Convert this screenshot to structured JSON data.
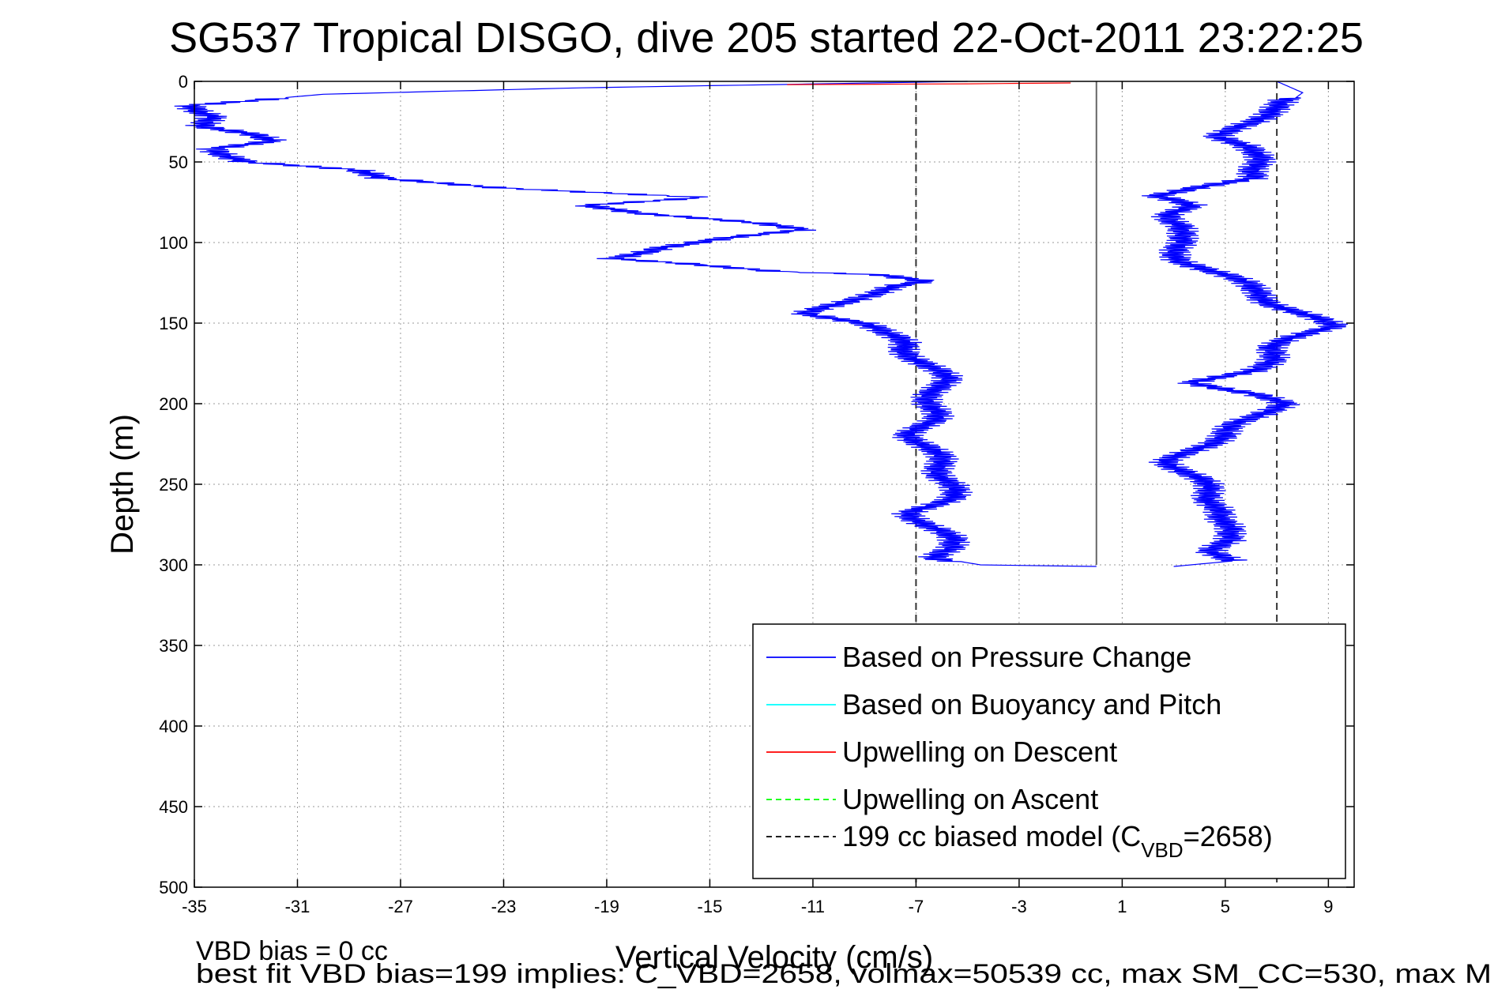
{
  "chart_data": {
    "type": "line",
    "title": "SG537 Tropical DISGO, dive 205 started 22-Oct-2011 23:22:25",
    "xlabel": "Vertical Velocity (cm/s)",
    "ylabel": "Depth (m)",
    "xlim": [
      -35,
      10
    ],
    "ylim": [
      0,
      500
    ],
    "y_reversed": true,
    "grid": true,
    "x_ticks": [
      -35,
      -31,
      -27,
      -23,
      -19,
      -15,
      -11,
      -7,
      -3,
      1,
      5,
      9
    ],
    "y_ticks": [
      0,
      50,
      100,
      150,
      200,
      250,
      300,
      350,
      400,
      450,
      500
    ],
    "legend_position": "bottom-right",
    "legend": [
      {
        "label": "Based on Pressure Change",
        "color": "#0000ff",
        "style": "solid"
      },
      {
        "label": "Based on Buoyancy and Pitch",
        "color": "#00ffff",
        "style": "solid"
      },
      {
        "label": "Upwelling on Descent",
        "color": "#ff0000",
        "style": "solid"
      },
      {
        "label": "Upwelling on Ascent",
        "color": "#00ff00",
        "style": "dashed"
      },
      {
        "label_prefix": "199 cc biased model (C",
        "label_sub": "VBD",
        "label_suffix": "=2658)",
        "color": "#000000",
        "style": "dashed"
      }
    ],
    "series": [
      {
        "name": "Based on Pressure Change",
        "color": "#0000ff",
        "segment": "descent",
        "points": [
          [
            -5,
            0
          ],
          [
            -20,
            4
          ],
          [
            -30,
            8
          ],
          [
            -35,
            15
          ],
          [
            -34,
            22
          ],
          [
            -35,
            28
          ],
          [
            -33,
            33
          ],
          [
            -32,
            37
          ],
          [
            -34,
            42
          ],
          [
            -33,
            50
          ],
          [
            -29,
            55
          ],
          [
            -28,
            60
          ],
          [
            -23,
            66
          ],
          [
            -15,
            72
          ],
          [
            -20,
            77
          ],
          [
            -18,
            82
          ],
          [
            -13,
            88
          ],
          [
            -11,
            92
          ],
          [
            -14,
            97
          ],
          [
            -17,
            103
          ],
          [
            -19,
            110
          ],
          [
            -16,
            113
          ],
          [
            -12,
            118
          ],
          [
            -8,
            120
          ],
          [
            -6.5,
            124
          ],
          [
            -8,
            127
          ],
          [
            -9,
            132
          ],
          [
            -10,
            138
          ],
          [
            -11,
            144
          ],
          [
            -9,
            150
          ],
          [
            -8.5,
            156
          ],
          [
            -7.5,
            162
          ],
          [
            -7,
            170
          ],
          [
            -6.5,
            178
          ],
          [
            -6,
            185
          ],
          [
            -6,
            192
          ],
          [
            -6.5,
            200
          ],
          [
            -6.5,
            210
          ],
          [
            -7,
            220
          ],
          [
            -6.5,
            230
          ],
          [
            -6,
            240
          ],
          [
            -5.5,
            250
          ],
          [
            -6,
            260
          ],
          [
            -7,
            268
          ],
          [
            -6.5,
            276
          ],
          [
            -6,
            282
          ],
          [
            -5.5,
            290
          ],
          [
            -6,
            296
          ],
          [
            -4.5,
            300
          ],
          [
            0,
            301
          ]
        ]
      },
      {
        "name": "Based on Pressure Change",
        "color": "#0000ff",
        "segment": "ascent",
        "points": [
          [
            3,
            301
          ],
          [
            5,
            298
          ],
          [
            4.5,
            292
          ],
          [
            5.5,
            285
          ],
          [
            5,
            278
          ],
          [
            4.5,
            272
          ],
          [
            5,
            265
          ],
          [
            4.5,
            258
          ],
          [
            4,
            250
          ],
          [
            3.5,
            243
          ],
          [
            3,
            236
          ],
          [
            3.5,
            230
          ],
          [
            4.5,
            222
          ],
          [
            5.5,
            214
          ],
          [
            6.5,
            207
          ],
          [
            7,
            200
          ],
          [
            6,
            194
          ],
          [
            4,
            187
          ],
          [
            6,
            180
          ],
          [
            6.5,
            173
          ],
          [
            7,
            165
          ],
          [
            8,
            158
          ],
          [
            9,
            152
          ],
          [
            8,
            145
          ],
          [
            7,
            138
          ],
          [
            6.5,
            132
          ],
          [
            5.5,
            125
          ],
          [
            4.5,
            118
          ],
          [
            3.5,
            111
          ],
          [
            3,
            104
          ],
          [
            3,
            97
          ],
          [
            3.5,
            90
          ],
          [
            3,
            83
          ],
          [
            3.5,
            77
          ],
          [
            2,
            71
          ],
          [
            4,
            66
          ],
          [
            6.5,
            60
          ],
          [
            6,
            54
          ],
          [
            6,
            47
          ],
          [
            6,
            40
          ],
          [
            5,
            34
          ],
          [
            5.5,
            27
          ],
          [
            6.5,
            20
          ],
          [
            7.5,
            13
          ],
          [
            8,
            7
          ],
          [
            7,
            0
          ]
        ]
      },
      {
        "name": "Upwelling on Descent",
        "color": "#ff0000",
        "points": [
          [
            -12,
            2
          ],
          [
            -5,
            1.5
          ],
          [
            -1,
            1
          ]
        ]
      }
    ],
    "reference_lines": [
      {
        "x": -7,
        "style": "dashed",
        "color": "#333333",
        "ymin": 0,
        "ymax": 500
      },
      {
        "x": 7,
        "style": "dashed",
        "color": "#333333",
        "ymin": 0,
        "ymax": 500
      },
      {
        "x": 0,
        "style": "solid",
        "color": "#666666",
        "ymin": 0,
        "ymax": 300
      }
    ]
  },
  "notes": {
    "vbd_bias": "VBD bias = 0 cc",
    "best_fit": "best fit VBD bias=199 implies: C_VBD=2658, volmax=50539 cc, max SM_CC=530, max M"
  }
}
